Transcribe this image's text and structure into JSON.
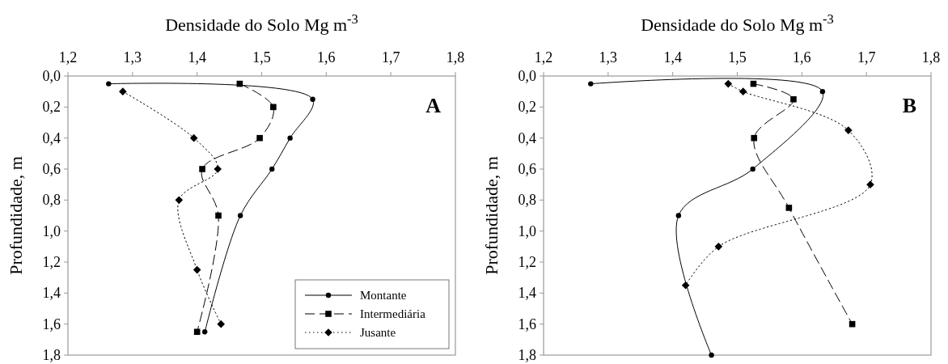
{
  "chart_data": [
    {
      "type": "line",
      "xlabel": "Densidade do Solo Mg m$^{-3}$",
      "ylabel": "Profundidade, m",
      "annotations": [
        "A"
      ],
      "xlim": [
        1.2,
        1.8
      ],
      "xticks": [
        {
          "value": 1.2,
          "label": "1,2"
        },
        {
          "value": 1.3,
          "label": "1,3"
        },
        {
          "value": 1.4,
          "label": "1,4"
        },
        {
          "value": 1.5,
          "label": "1,5"
        },
        {
          "value": 1.6,
          "label": "1,6"
        },
        {
          "value": 1.7,
          "label": "1,7"
        },
        {
          "value": 1.8,
          "label": "1,8"
        }
      ],
      "ylim": [
        1.8,
        0
      ],
      "yticks": [
        {
          "value": 0,
          "label": "0,0"
        },
        {
          "value": 0.2,
          "label": "0,2"
        },
        {
          "value": 0.4,
          "label": "0,4"
        },
        {
          "value": 0.6,
          "label": "0,6"
        },
        {
          "value": 0.8,
          "label": "0,8"
        },
        {
          "value": 1.0,
          "label": "1,0"
        },
        {
          "value": 1.2,
          "label": "1,2"
        },
        {
          "value": 1.4,
          "label": "1,4"
        },
        {
          "value": 1.6,
          "label": "1,6"
        },
        {
          "value": 1.8,
          "label": "1,8"
        }
      ],
      "legend": "bottom right",
      "series": [
        {
          "name": "Montante",
          "color": "#000000",
          "marker": "circle",
          "line_style": "solid",
          "x": [
            1.263,
            1.579,
            1.544,
            1.516,
            1.467,
            1.412
          ],
          "values": [
            0.05,
            0.15,
            0.4,
            0.6,
            0.9,
            1.65
          ]
        },
        {
          "name": "Intermediária",
          "color": "#000000",
          "marker": "square",
          "line_style": "dashed",
          "x": [
            1.466,
            1.518,
            1.497,
            1.408,
            1.433,
            1.4
          ],
          "values": [
            0.05,
            0.2,
            0.4,
            0.6,
            0.9,
            1.65
          ]
        },
        {
          "name": "Jusante",
          "color": "#000000",
          "marker": "diamond",
          "line_style": "dotted",
          "x": [
            1.285,
            1.395,
            1.432,
            1.372,
            1.4,
            1.437
          ],
          "values": [
            0.1,
            0.4,
            0.6,
            0.8,
            1.25,
            1.6
          ]
        }
      ]
    },
    {
      "type": "line",
      "xlabel": "Densidade do Solo Mg m$^{-3}$",
      "ylabel": "Profundidade, m",
      "annotations": [
        "B"
      ],
      "xlim": [
        1.2,
        1.8
      ],
      "xticks": [
        {
          "value": 1.2,
          "label": "1,2"
        },
        {
          "value": 1.3,
          "label": "1,3"
        },
        {
          "value": 1.4,
          "label": "1,4"
        },
        {
          "value": 1.5,
          "label": "1,5"
        },
        {
          "value": 1.6,
          "label": "1,6"
        },
        {
          "value": 1.7,
          "label": "1,7"
        },
        {
          "value": 1.8,
          "label": "1,8"
        }
      ],
      "ylim": [
        1.8,
        0
      ],
      "yticks": [
        {
          "value": 0,
          "label": "0,0"
        },
        {
          "value": 0.2,
          "label": "0,2"
        },
        {
          "value": 0.4,
          "label": "0,4"
        },
        {
          "value": 0.6,
          "label": "0,6"
        },
        {
          "value": 0.8,
          "label": "0,8"
        },
        {
          "value": 1.0,
          "label": "1,0"
        },
        {
          "value": 1.2,
          "label": "1,2"
        },
        {
          "value": 1.4,
          "label": "1,4"
        },
        {
          "value": 1.6,
          "label": "1,6"
        },
        {
          "value": 1.8,
          "label": "1,8"
        }
      ],
      "series": [
        {
          "color": "#000000",
          "marker": "circle",
          "line_style": "solid",
          "x": [
            1.273,
            1.632,
            1.524,
            1.409,
            1.46
          ],
          "values": [
            0.05,
            0.1,
            0.6,
            0.9,
            1.8
          ]
        },
        {
          "color": "#000000",
          "marker": "square",
          "line_style": "dashed",
          "x": [
            1.525,
            1.587,
            1.526,
            1.58,
            1.678
          ],
          "values": [
            0.05,
            0.15,
            0.4,
            0.85,
            1.6
          ]
        },
        {
          "color": "#000000",
          "marker": "diamond",
          "line_style": "dotted",
          "x": [
            1.486,
            1.509,
            1.672,
            1.706,
            1.471,
            1.42
          ],
          "values": [
            0.05,
            0.1,
            0.35,
            0.7,
            1.1,
            1.35
          ]
        }
      ]
    }
  ]
}
